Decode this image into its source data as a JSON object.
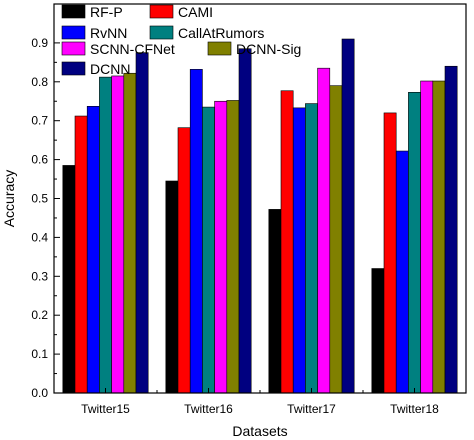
{
  "chart_data": {
    "type": "bar",
    "xlabel": "Datasets",
    "ylabel": "Accuracy",
    "ylim": [
      0.0,
      1.0
    ],
    "yticks": [
      "0.0",
      "0.1",
      "0.2",
      "0.3",
      "0.4",
      "0.5",
      "0.6",
      "0.7",
      "0.8",
      "0.9"
    ],
    "categories": [
      "Twitter15",
      "Twitter16",
      "Twitter17",
      "Twitter18"
    ],
    "grid": false,
    "legend_placement": "top-left",
    "series": [
      {
        "name": "RF-P",
        "color": "#000000",
        "values": [
          0.585,
          0.545,
          0.472,
          0.32
        ]
      },
      {
        "name": "CAMI",
        "color": "#ff0000",
        "values": [
          0.712,
          0.682,
          0.777,
          0.72
        ]
      },
      {
        "name": "RvNN",
        "color": "#0000ff",
        "values": [
          0.737,
          0.832,
          0.733,
          0.622
        ]
      },
      {
        "name": "CallAtRumors",
        "color": "#008080",
        "values": [
          0.812,
          0.735,
          0.744,
          0.773
        ]
      },
      {
        "name": "SCNN-CFNet",
        "color": "#ff00ff",
        "values": [
          0.815,
          0.75,
          0.835,
          0.802
        ]
      },
      {
        "name": "DCNN-Sig",
        "color": "#808000",
        "values": [
          0.822,
          0.752,
          0.79,
          0.802
        ]
      },
      {
        "name": "DCNN",
        "color": "#000080",
        "values": [
          0.875,
          0.885,
          0.91,
          0.84
        ]
      }
    ]
  }
}
